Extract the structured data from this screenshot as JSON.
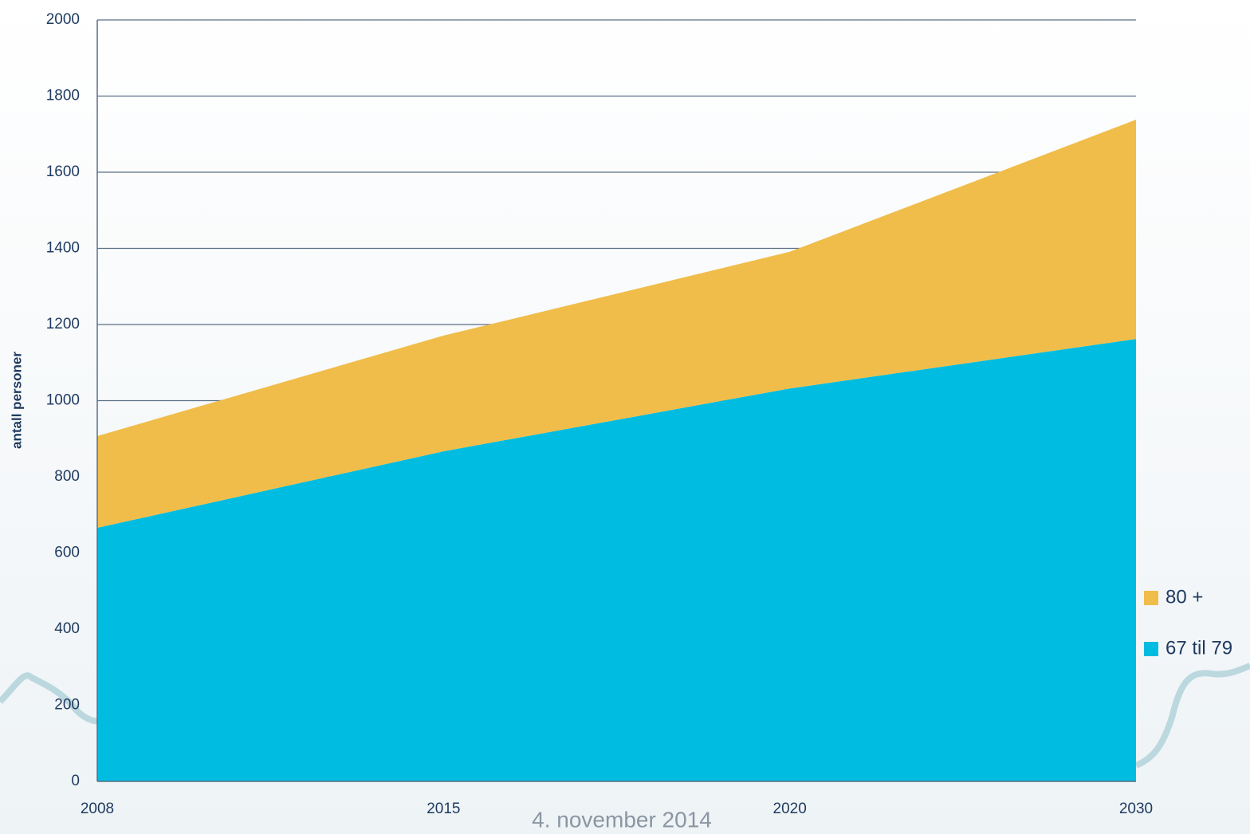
{
  "chart_data": {
    "type": "stacked_area",
    "ylabel": "antall personer",
    "categories": [
      "2008",
      "2015",
      "2020",
      "2030"
    ],
    "series": [
      {
        "name": "67 til 79",
        "color": "#00bce0",
        "values": [
          666,
          867,
          1032,
          1162
        ]
      },
      {
        "name": "80 +",
        "color": "#f0bd4a",
        "values": [
          241,
          304,
          359,
          576
        ]
      }
    ],
    "ylim": [
      0,
      2000
    ],
    "yticks": [
      0,
      200,
      400,
      600,
      800,
      1000,
      1200,
      1400,
      1600,
      1800,
      2000
    ],
    "grid": true,
    "legend": "right"
  },
  "footer": "4. november 2014"
}
